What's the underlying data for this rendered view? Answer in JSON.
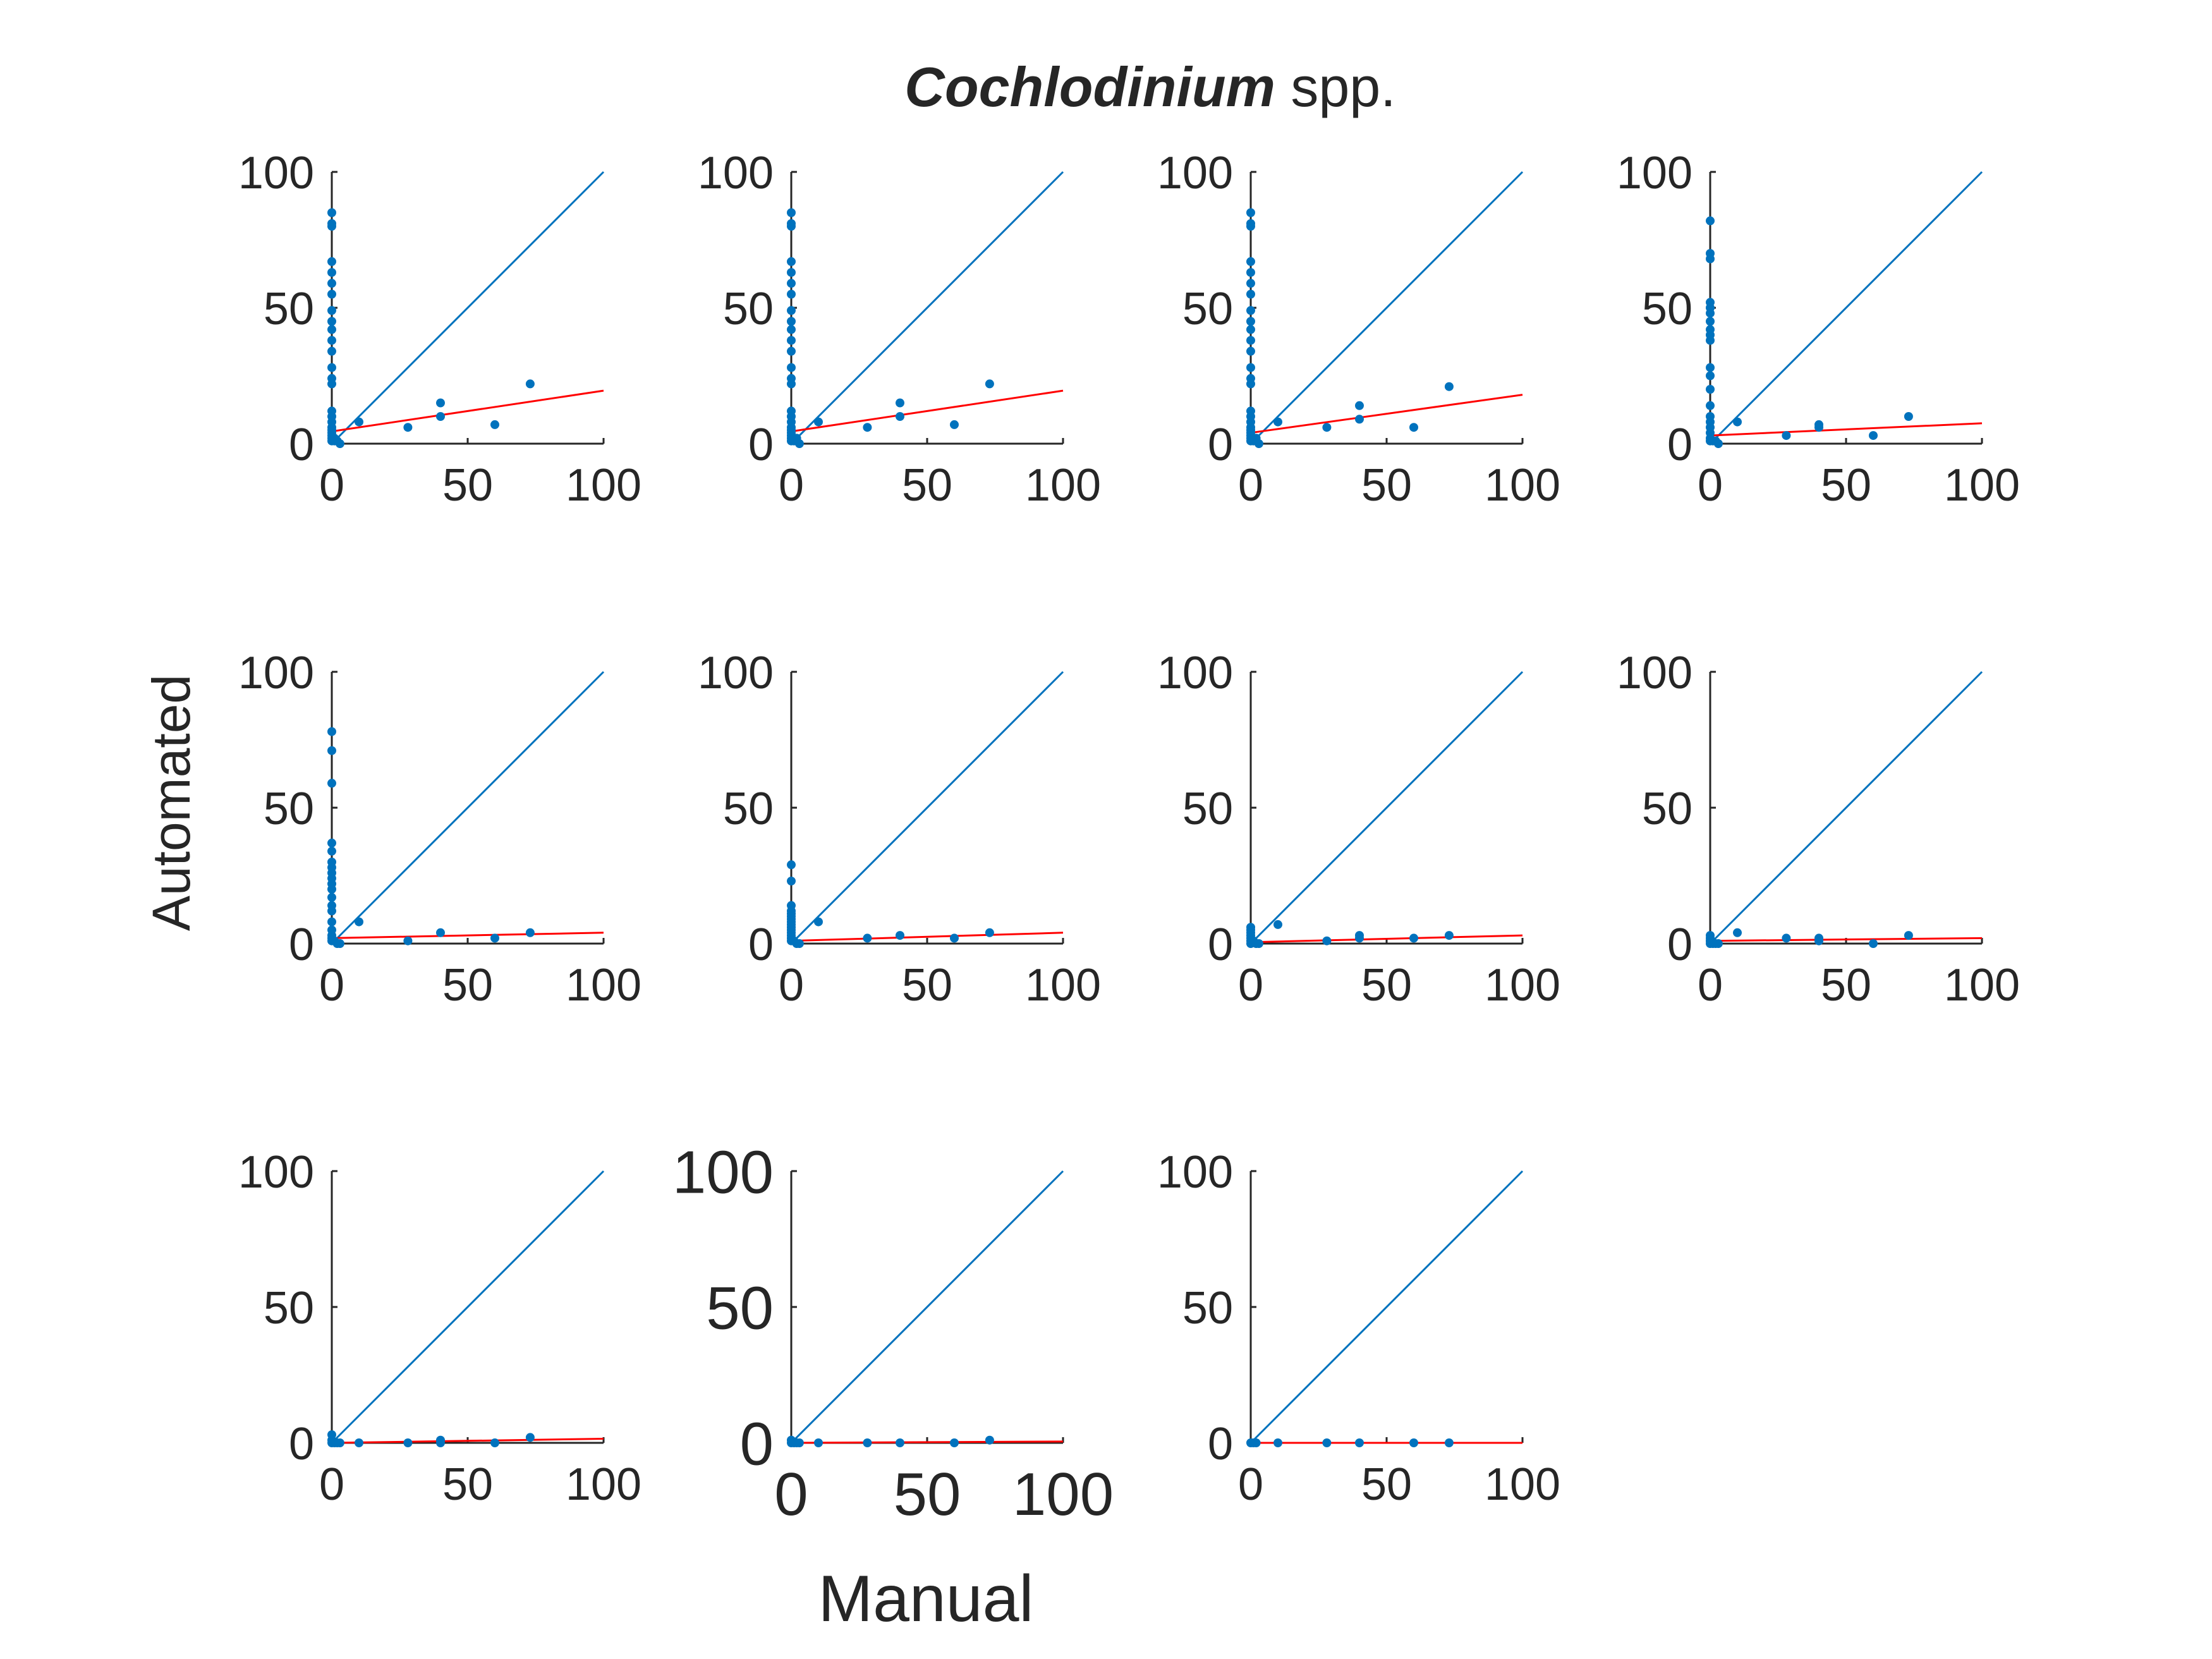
{
  "title": {
    "italic": "Cochlodinium",
    "rest": " spp."
  },
  "xlabel": "Manual",
  "ylabel": "Automated",
  "colors": {
    "points": "#0072BD",
    "identity": "#0072BD",
    "fit": "#FF0000",
    "axes": "#262626",
    "background": "#FFFFFF"
  },
  "chart_data": [
    {
      "type": "scatter",
      "xlim": [
        0,
        100
      ],
      "ylim": [
        0,
        100
      ],
      "xticks": [
        "0",
        "50",
        "100"
      ],
      "yticks": [
        "0",
        "50",
        "100"
      ],
      "x": [
        0,
        0,
        0,
        0,
        0,
        0,
        0,
        0,
        0,
        0,
        0,
        0,
        0,
        0,
        0,
        0,
        0,
        0,
        0,
        0,
        0,
        0,
        0,
        0,
        1,
        1,
        2,
        3,
        10,
        28,
        40,
        40,
        60,
        73
      ],
      "y": [
        85,
        81,
        80,
        67,
        63,
        59,
        55,
        49,
        45,
        42,
        38,
        34,
        28,
        24,
        22,
        12,
        10,
        8,
        6,
        5,
        4,
        3,
        2,
        1,
        1,
        2,
        1,
        0,
        8,
        6,
        10,
        15,
        7,
        22
      ],
      "fit": [
        [
          0,
          4.5
        ],
        [
          100,
          19.5
        ]
      ],
      "identity": [
        [
          0,
          0
        ],
        [
          100,
          100
        ]
      ]
    },
    {
      "type": "scatter",
      "xlim": [
        0,
        100
      ],
      "ylim": [
        0,
        100
      ],
      "xticks": [
        "0",
        "50",
        "100"
      ],
      "yticks": [
        "0",
        "50",
        "100"
      ],
      "x": [
        0,
        0,
        0,
        0,
        0,
        0,
        0,
        0,
        0,
        0,
        0,
        0,
        0,
        0,
        0,
        0,
        0,
        0,
        0,
        0,
        0,
        0,
        0,
        0,
        1,
        2,
        3,
        10,
        28,
        40,
        40,
        60,
        73
      ],
      "y": [
        85,
        81,
        80,
        67,
        63,
        59,
        55,
        49,
        45,
        42,
        38,
        34,
        28,
        24,
        22,
        12,
        10,
        8,
        6,
        5,
        4,
        3,
        2,
        1,
        1,
        2,
        0,
        8,
        6,
        10,
        15,
        7,
        22
      ],
      "fit": [
        [
          0,
          4.5
        ],
        [
          100,
          19.5
        ]
      ],
      "identity": [
        [
          0,
          0
        ],
        [
          100,
          100
        ]
      ]
    },
    {
      "type": "scatter",
      "xlim": [
        0,
        100
      ],
      "ylim": [
        0,
        100
      ],
      "xticks": [
        "0",
        "50",
        "100"
      ],
      "yticks": [
        "0",
        "50",
        "100"
      ],
      "x": [
        0,
        0,
        0,
        0,
        0,
        0,
        0,
        0,
        0,
        0,
        0,
        0,
        0,
        0,
        0,
        0,
        0,
        0,
        0,
        0,
        0,
        0,
        0,
        0,
        1,
        2,
        3,
        10,
        28,
        40,
        40,
        60,
        73
      ],
      "y": [
        85,
        81,
        80,
        67,
        63,
        59,
        55,
        49,
        45,
        42,
        38,
        34,
        28,
        24,
        22,
        12,
        10,
        8,
        6,
        5,
        4,
        3,
        2,
        1,
        1,
        2,
        0,
        8,
        6,
        9,
        14,
        6,
        21
      ],
      "fit": [
        [
          0,
          4
        ],
        [
          100,
          18
        ]
      ],
      "identity": [
        [
          0,
          0
        ],
        [
          100,
          100
        ]
      ]
    },
    {
      "type": "scatter",
      "xlim": [
        0,
        100
      ],
      "ylim": [
        0,
        100
      ],
      "xticks": [
        "0",
        "50",
        "100"
      ],
      "yticks": [
        "0",
        "50",
        "100"
      ],
      "x": [
        0,
        0,
        0,
        0,
        0,
        0,
        0,
        0,
        0,
        0,
        0,
        0,
        0,
        0,
        0,
        0,
        0,
        0,
        0,
        0,
        1,
        2,
        3,
        10,
        28,
        40,
        40,
        60,
        73
      ],
      "y": [
        82,
        70,
        68,
        52,
        50,
        48,
        45,
        42,
        40,
        38,
        28,
        25,
        20,
        14,
        10,
        8,
        6,
        4,
        2,
        1,
        1,
        1,
        0,
        8,
        3,
        6,
        7,
        3,
        10
      ],
      "fit": [
        [
          0,
          3
        ],
        [
          100,
          7.5
        ]
      ],
      "identity": [
        [
          0,
          0
        ],
        [
          100,
          100
        ]
      ]
    },
    {
      "type": "scatter",
      "xlim": [
        0,
        100
      ],
      "ylim": [
        0,
        100
      ],
      "xticks": [
        "0",
        "50",
        "100"
      ],
      "yticks": [
        "0",
        "50",
        "100"
      ],
      "x": [
        0,
        0,
        0,
        0,
        0,
        0,
        0,
        0,
        0,
        0,
        0,
        0,
        0,
        0,
        0,
        0,
        0,
        0,
        0,
        1,
        2,
        3,
        10,
        28,
        40,
        60,
        73
      ],
      "y": [
        78,
        71,
        59,
        37,
        34,
        30,
        28,
        26,
        24,
        22,
        20,
        17,
        14,
        12,
        8,
        5,
        3,
        2,
        1,
        1,
        0,
        0,
        8,
        1,
        4,
        2,
        4
      ],
      "fit": [
        [
          0,
          2
        ],
        [
          100,
          4
        ]
      ],
      "identity": [
        [
          0,
          0
        ],
        [
          100,
          100
        ]
      ]
    },
    {
      "type": "scatter",
      "xlim": [
        0,
        100
      ],
      "ylim": [
        0,
        100
      ],
      "xticks": [
        "0",
        "50",
        "100"
      ],
      "yticks": [
        "0",
        "50",
        "100"
      ],
      "x": [
        0,
        0,
        0,
        0,
        0,
        0,
        0,
        0,
        0,
        0,
        0,
        0,
        0,
        0,
        0,
        1,
        2,
        3,
        10,
        28,
        40,
        60,
        73
      ],
      "y": [
        29,
        23,
        14,
        12,
        11,
        10,
        9,
        8,
        7,
        6,
        5,
        4,
        3,
        2,
        1,
        1,
        0,
        0,
        8,
        2,
        3,
        2,
        4
      ],
      "fit": [
        [
          0,
          1
        ],
        [
          100,
          4
        ]
      ],
      "identity": [
        [
          0,
          0
        ],
        [
          100,
          100
        ]
      ]
    },
    {
      "type": "scatter",
      "xlim": [
        0,
        100
      ],
      "ylim": [
        0,
        100
      ],
      "xticks": [
        "0",
        "50",
        "100"
      ],
      "yticks": [
        "0",
        "50",
        "100"
      ],
      "x": [
        0,
        0,
        0,
        0,
        0,
        0,
        0,
        1,
        2,
        3,
        10,
        28,
        40,
        40,
        60,
        73
      ],
      "y": [
        6,
        5,
        4,
        3,
        2,
        1,
        0,
        1,
        0,
        0,
        7,
        1,
        2,
        3,
        2,
        3
      ],
      "fit": [
        [
          0,
          0.5
        ],
        [
          100,
          3
        ]
      ],
      "identity": [
        [
          0,
          0
        ],
        [
          100,
          100
        ]
      ]
    },
    {
      "type": "scatter",
      "xlim": [
        0,
        100
      ],
      "ylim": [
        0,
        100
      ],
      "xticks": [
        "0",
        "50",
        "100"
      ],
      "yticks": [
        "0",
        "50",
        "100"
      ],
      "x": [
        0,
        0,
        0,
        0,
        0,
        1,
        2,
        3,
        10,
        28,
        40,
        40,
        60,
        73
      ],
      "y": [
        3,
        2,
        1,
        1,
        0,
        0,
        0,
        0,
        4,
        2,
        1,
        2,
        0,
        3
      ],
      "fit": [
        [
          0,
          1
        ],
        [
          100,
          2
        ]
      ],
      "identity": [
        [
          0,
          0
        ],
        [
          100,
          100
        ]
      ]
    },
    {
      "type": "scatter",
      "xlim": [
        0,
        100
      ],
      "ylim": [
        0,
        100
      ],
      "xticks": [
        "0",
        "50",
        "100"
      ],
      "yticks": [
        "0",
        "50",
        "100"
      ],
      "x": [
        0,
        0,
        0,
        1,
        2,
        3,
        10,
        28,
        40,
        40,
        60,
        73
      ],
      "y": [
        3,
        1,
        0,
        0,
        0,
        0,
        0,
        0,
        0,
        1,
        0,
        2
      ],
      "fit": [
        [
          0,
          0
        ],
        [
          100,
          1.5
        ]
      ],
      "identity": [
        [
          0,
          0
        ],
        [
          100,
          100
        ]
      ]
    },
    {
      "type": "scatter",
      "xlim": [
        0,
        100
      ],
      "ylim": [
        0,
        100
      ],
      "xticks": [
        "0",
        "50",
        "100"
      ],
      "yticks": [
        "0",
        "50",
        "100"
      ],
      "x": [
        0,
        0,
        1,
        2,
        3,
        10,
        28,
        40,
        60,
        73
      ],
      "y": [
        1,
        0,
        0,
        0,
        0,
        0,
        0,
        0,
        0,
        1
      ],
      "fit": [
        [
          0,
          0
        ],
        [
          100,
          0.5
        ]
      ],
      "identity": [
        [
          0,
          0
        ],
        [
          100,
          100
        ]
      ]
    },
    {
      "type": "scatter",
      "xlim": [
        0,
        100
      ],
      "ylim": [
        0,
        100
      ],
      "xticks": [
        "0",
        "50",
        "100"
      ],
      "yticks": [
        "0",
        "50",
        "100"
      ],
      "x": [
        0,
        1,
        2,
        10,
        28,
        40,
        60,
        73
      ],
      "y": [
        0,
        0,
        0,
        0,
        0,
        0,
        0,
        0
      ],
      "fit": [
        [
          0,
          0
        ],
        [
          100,
          0
        ]
      ],
      "identity": [
        [
          0,
          0
        ],
        [
          100,
          100
        ]
      ]
    }
  ]
}
